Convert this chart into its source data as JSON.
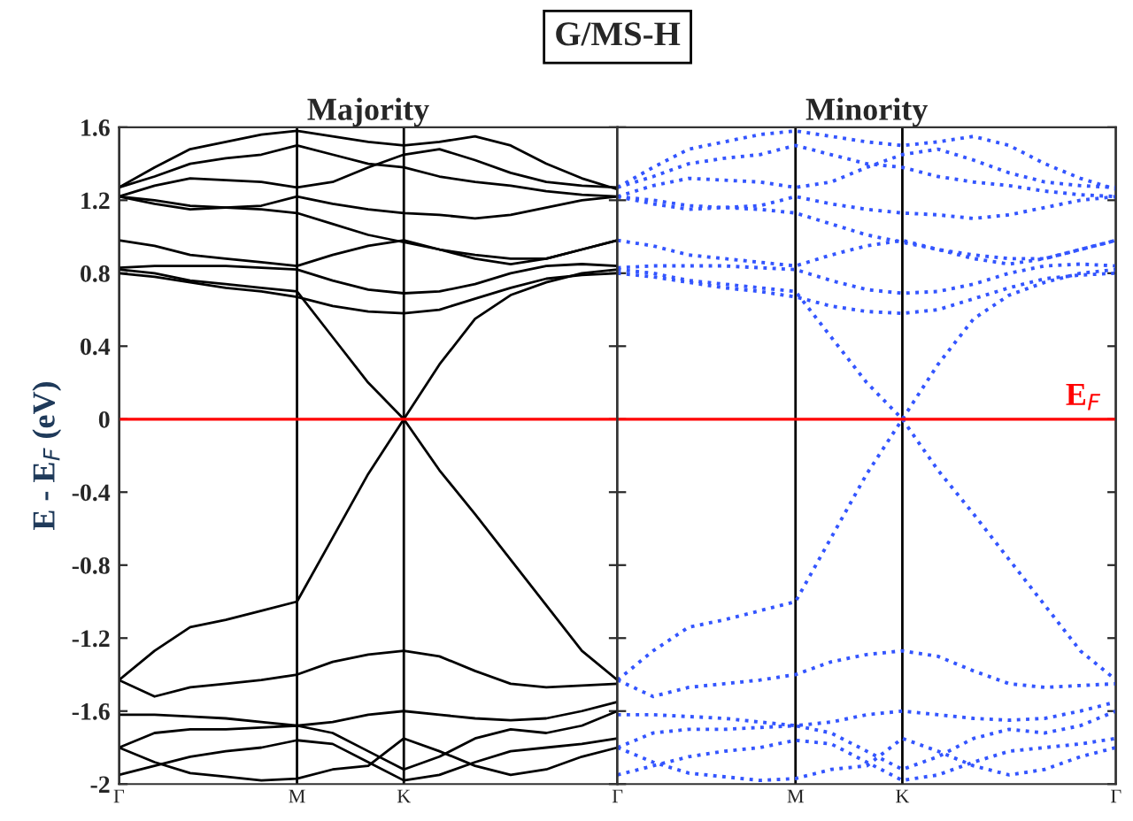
{
  "chart_data": [
    {
      "type": "line",
      "title": "G/MS-H",
      "subtitle": "Majority",
      "ylabel": "E - E$_{F}$ (eV)",
      "line_style": "solid",
      "grid": "x",
      "categories": [
        "Γ",
        null,
        null,
        null,
        null,
        "M",
        null,
        null,
        "K",
        null,
        null,
        null,
        null,
        null,
        "Γ"
      ],
      "ylim": [
        -2,
        1.6
      ],
      "yticks": [
        -2,
        -1.6,
        -1.2,
        -0.8,
        -0.4,
        0,
        0.4,
        0.8,
        1.2,
        1.6
      ],
      "ref_lines": [
        {
          "axis": "y",
          "value": 0,
          "color": "#ff0000"
        }
      ],
      "series": [
        {
          "color": "#000000",
          "values": [
            0.82,
            0.8,
            0.76,
            0.74,
            0.72,
            0.7,
            0.45,
            0.2,
            0.0,
            0.3,
            0.55,
            0.68,
            0.75,
            0.8,
            0.82
          ]
        },
        {
          "color": "#000000",
          "values": [
            -1.43,
            -1.27,
            -1.14,
            -1.1,
            -1.05,
            -1.0,
            -0.65,
            -0.3,
            0.0,
            -0.28,
            -0.52,
            -0.77,
            -1.02,
            -1.27,
            -1.43
          ]
        },
        {
          "color": "#000000",
          "values": [
            -1.43,
            -1.52,
            -1.47,
            -1.45,
            -1.43,
            -1.4,
            -1.33,
            -1.29,
            -1.27,
            -1.3,
            -1.38,
            -1.45,
            -1.47,
            -1.46,
            -1.45
          ]
        },
        {
          "color": "#000000",
          "values": [
            -1.62,
            -1.62,
            -1.63,
            -1.64,
            -1.66,
            -1.68,
            -1.66,
            -1.62,
            -1.6,
            -1.62,
            -1.64,
            -1.65,
            -1.64,
            -1.6,
            -1.55
          ]
        },
        {
          "color": "#000000",
          "values": [
            -1.8,
            -1.72,
            -1.7,
            -1.7,
            -1.69,
            -1.68,
            -1.72,
            -1.82,
            -1.92,
            -1.85,
            -1.75,
            -1.7,
            -1.72,
            -1.68,
            -1.6
          ]
        },
        {
          "color": "#000000",
          "values": [
            -1.8,
            -1.88,
            -1.94,
            -1.96,
            -1.98,
            -1.97,
            -1.92,
            -1.9,
            -1.75,
            -1.82,
            -1.9,
            -1.95,
            -1.92,
            -1.85,
            -1.8
          ]
        },
        {
          "color": "#000000",
          "values": [
            -1.95,
            -1.9,
            -1.85,
            -1.82,
            -1.8,
            -1.76,
            -1.78,
            -1.88,
            -1.98,
            -1.95,
            -1.88,
            -1.82,
            -1.8,
            -1.78,
            -1.75
          ]
        },
        {
          "color": "#000000",
          "values": [
            0.8,
            0.78,
            0.75,
            0.72,
            0.7,
            0.67,
            0.62,
            0.59,
            0.58,
            0.6,
            0.66,
            0.72,
            0.77,
            0.79,
            0.8
          ]
        },
        {
          "color": "#000000",
          "values": [
            0.83,
            0.84,
            0.84,
            0.84,
            0.83,
            0.82,
            0.76,
            0.71,
            0.69,
            0.7,
            0.74,
            0.8,
            0.84,
            0.85,
            0.84
          ]
        },
        {
          "color": "#000000",
          "values": [
            0.98,
            0.95,
            0.9,
            0.88,
            0.86,
            0.84,
            0.9,
            0.95,
            0.98,
            0.93,
            0.88,
            0.85,
            0.88,
            0.93,
            0.98
          ]
        },
        {
          "color": "#000000",
          "values": [
            1.22,
            1.2,
            1.17,
            1.16,
            1.15,
            1.13,
            1.07,
            1.01,
            0.97,
            0.93,
            0.9,
            0.88,
            0.88,
            0.93,
            0.98
          ]
        },
        {
          "color": "#000000",
          "values": [
            1.22,
            1.18,
            1.15,
            1.16,
            1.17,
            1.22,
            1.18,
            1.15,
            1.13,
            1.12,
            1.1,
            1.12,
            1.16,
            1.2,
            1.22
          ]
        },
        {
          "color": "#000000",
          "values": [
            1.27,
            1.33,
            1.4,
            1.43,
            1.45,
            1.5,
            1.45,
            1.4,
            1.38,
            1.33,
            1.3,
            1.28,
            1.25,
            1.23,
            1.22
          ]
        },
        {
          "color": "#000000",
          "values": [
            1.27,
            1.38,
            1.48,
            1.52,
            1.56,
            1.58,
            1.55,
            1.52,
            1.5,
            1.52,
            1.55,
            1.5,
            1.4,
            1.32,
            1.26
          ]
        },
        {
          "color": "#000000",
          "values": [
            1.22,
            1.28,
            1.32,
            1.31,
            1.3,
            1.27,
            1.3,
            1.38,
            1.45,
            1.48,
            1.42,
            1.35,
            1.3,
            1.28,
            1.27
          ]
        }
      ]
    },
    {
      "type": "line",
      "subtitle": "Minority",
      "line_style": "dotted",
      "grid": "x",
      "tick_labels": "x",
      "categories": [
        null,
        null,
        null,
        null,
        null,
        "M",
        null,
        null,
        "K",
        null,
        null,
        null,
        null,
        null,
        "Γ"
      ],
      "ylim": [
        -2,
        1.6
      ],
      "yticks": [
        -2,
        -1.6,
        -1.2,
        -0.8,
        -0.4,
        0,
        0.4,
        0.8,
        1.2,
        1.6
      ],
      "ref_lines": [
        {
          "axis": "y",
          "value": 0,
          "color": "#ff0000",
          "label": "E$_{F}$"
        }
      ],
      "series": [
        {
          "color": "#3355ff",
          "values": [
            0.82,
            0.8,
            0.76,
            0.74,
            0.72,
            0.7,
            0.45,
            0.2,
            0.0,
            0.3,
            0.55,
            0.68,
            0.75,
            0.8,
            0.82
          ]
        },
        {
          "color": "#3355ff",
          "values": [
            -1.43,
            -1.27,
            -1.14,
            -1.1,
            -1.05,
            -1.0,
            -0.65,
            -0.3,
            0.0,
            -0.28,
            -0.52,
            -0.77,
            -1.02,
            -1.27,
            -1.43
          ]
        },
        {
          "color": "#3355ff",
          "values": [
            -1.43,
            -1.52,
            -1.47,
            -1.45,
            -1.43,
            -1.4,
            -1.33,
            -1.29,
            -1.27,
            -1.3,
            -1.38,
            -1.45,
            -1.47,
            -1.46,
            -1.45
          ]
        },
        {
          "color": "#3355ff",
          "values": [
            -1.62,
            -1.62,
            -1.63,
            -1.64,
            -1.66,
            -1.68,
            -1.66,
            -1.62,
            -1.6,
            -1.62,
            -1.64,
            -1.65,
            -1.64,
            -1.6,
            -1.55
          ]
        },
        {
          "color": "#3355ff",
          "values": [
            -1.8,
            -1.72,
            -1.7,
            -1.7,
            -1.69,
            -1.68,
            -1.72,
            -1.82,
            -1.92,
            -1.85,
            -1.75,
            -1.7,
            -1.72,
            -1.68,
            -1.6
          ]
        },
        {
          "color": "#3355ff",
          "values": [
            -1.8,
            -1.88,
            -1.94,
            -1.96,
            -1.98,
            -1.97,
            -1.92,
            -1.9,
            -1.75,
            -1.82,
            -1.9,
            -1.95,
            -1.92,
            -1.85,
            -1.8
          ]
        },
        {
          "color": "#3355ff",
          "values": [
            -1.95,
            -1.9,
            -1.85,
            -1.82,
            -1.8,
            -1.76,
            -1.78,
            -1.88,
            -1.98,
            -1.95,
            -1.88,
            -1.82,
            -1.8,
            -1.78,
            -1.75
          ]
        },
        {
          "color": "#3355ff",
          "values": [
            0.8,
            0.78,
            0.75,
            0.72,
            0.7,
            0.67,
            0.62,
            0.59,
            0.58,
            0.6,
            0.66,
            0.72,
            0.77,
            0.79,
            0.8
          ]
        },
        {
          "color": "#3355ff",
          "values": [
            0.83,
            0.84,
            0.84,
            0.84,
            0.83,
            0.82,
            0.76,
            0.71,
            0.69,
            0.7,
            0.74,
            0.8,
            0.84,
            0.85,
            0.84
          ]
        },
        {
          "color": "#3355ff",
          "values": [
            0.98,
            0.95,
            0.9,
            0.88,
            0.86,
            0.84,
            0.9,
            0.95,
            0.98,
            0.93,
            0.88,
            0.85,
            0.88,
            0.93,
            0.98
          ]
        },
        {
          "color": "#3355ff",
          "values": [
            1.22,
            1.2,
            1.17,
            1.16,
            1.15,
            1.13,
            1.07,
            1.01,
            0.97,
            0.93,
            0.9,
            0.88,
            0.88,
            0.93,
            0.98
          ]
        },
        {
          "color": "#3355ff",
          "values": [
            1.22,
            1.18,
            1.15,
            1.16,
            1.17,
            1.22,
            1.18,
            1.15,
            1.13,
            1.12,
            1.1,
            1.12,
            1.16,
            1.2,
            1.22
          ]
        },
        {
          "color": "#3355ff",
          "values": [
            1.27,
            1.33,
            1.4,
            1.43,
            1.45,
            1.5,
            1.45,
            1.4,
            1.38,
            1.33,
            1.3,
            1.28,
            1.25,
            1.23,
            1.22
          ]
        },
        {
          "color": "#3355ff",
          "values": [
            1.27,
            1.38,
            1.48,
            1.52,
            1.56,
            1.58,
            1.55,
            1.52,
            1.5,
            1.52,
            1.55,
            1.5,
            1.4,
            1.32,
            1.26
          ]
        },
        {
          "color": "#3355ff",
          "values": [
            1.22,
            1.28,
            1.32,
            1.31,
            1.3,
            1.27,
            1.3,
            1.38,
            1.45,
            1.48,
            1.42,
            1.35,
            1.3,
            1.28,
            1.27
          ]
        }
      ]
    }
  ]
}
